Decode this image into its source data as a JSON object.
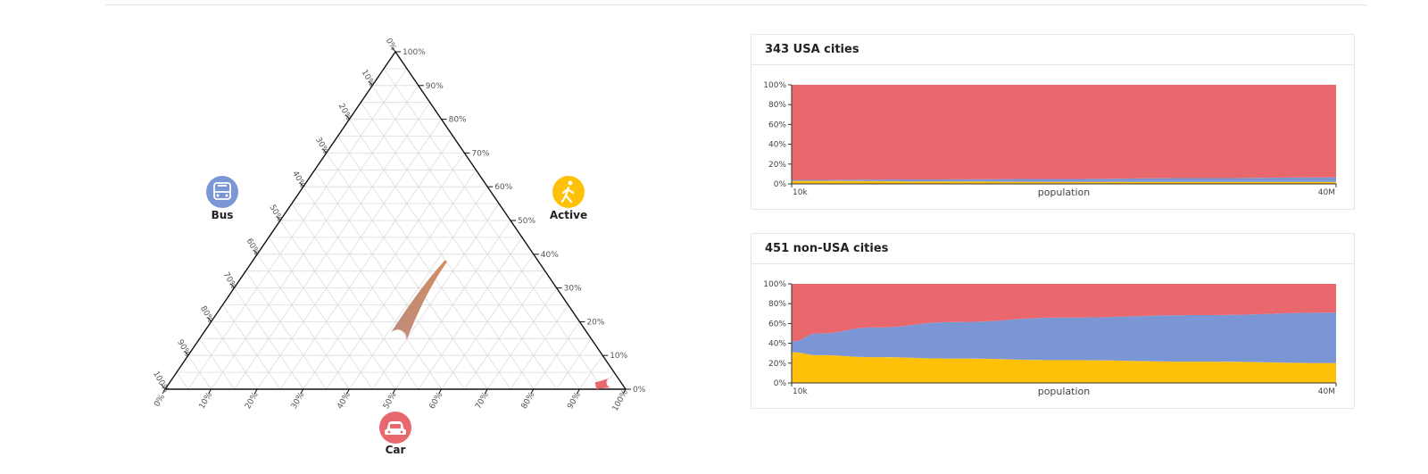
{
  "ternary": {
    "modes": [
      {
        "key": "bus",
        "label": "Bus",
        "color": "#7b96d5",
        "icon": "bus-icon"
      },
      {
        "key": "active",
        "label": "Active",
        "color": "#ffc107",
        "icon": "walking-person-icon"
      },
      {
        "key": "car",
        "label": "Car",
        "color": "#e8686d",
        "icon": "car-icon"
      }
    ],
    "tick_labels": [
      "0%",
      "10%",
      "20%",
      "30%",
      "40%",
      "50%",
      "60%",
      "70%",
      "80%",
      "90%",
      "100%"
    ],
    "trends": [
      {
        "name": "non-USA cities",
        "color_start": "#b28c8c",
        "color_end": "#e38b4a",
        "points": [
          {
            "car": 0.43,
            "bus": 0.42,
            "active": 0.15
          },
          {
            "car": 0.42,
            "bus": 0.2,
            "active": 0.38
          }
        ]
      },
      {
        "name": "USA cities",
        "color_start": "#e8686d",
        "color_end": "#e8686d",
        "points": [
          {
            "car": 0.96,
            "bus": 0.02,
            "active": 0.02
          },
          {
            "car": 0.93,
            "bus": 0.06,
            "active": 0.01
          }
        ]
      }
    ]
  },
  "chart_data": [
    {
      "type": "area",
      "title": "343 USA cities",
      "xlabel": "population",
      "x_ticks": [
        "10k",
        "40M"
      ],
      "y_ticks": [
        "0%",
        "20%",
        "40%",
        "60%",
        "80%",
        "100%"
      ],
      "ylim": [
        0,
        100
      ],
      "x": [
        0,
        0.25,
        0.5,
        0.75,
        1
      ],
      "series": [
        {
          "name": "Active",
          "color": "#ffc107",
          "values": [
            3,
            2.5,
            2,
            2,
            2
          ]
        },
        {
          "name": "Bus",
          "color": "#7b96d5",
          "values": [
            1,
            2,
            3,
            3.8,
            4.5
          ]
        },
        {
          "name": "Car",
          "color": "#e8686d",
          "values": [
            96,
            95.5,
            95,
            94.2,
            93.5
          ]
        }
      ]
    },
    {
      "type": "area",
      "title": "451 non-USA cities",
      "xlabel": "population",
      "x_ticks": [
        "10k",
        "40M"
      ],
      "y_ticks": [
        "0%",
        "20%",
        "40%",
        "60%",
        "80%",
        "100%"
      ],
      "ylim": [
        0,
        100
      ],
      "x": [
        0,
        0.05,
        0.15,
        0.3,
        0.5,
        0.75,
        1
      ],
      "series": [
        {
          "name": "Active",
          "color": "#ffc107",
          "values": [
            31,
            28,
            26,
            24.5,
            23,
            21.5,
            20
          ]
        },
        {
          "name": "Bus",
          "color": "#7b96d5",
          "values": [
            11,
            22,
            30,
            37,
            43,
            47,
            51
          ]
        },
        {
          "name": "Car",
          "color": "#e8686d",
          "values": [
            58,
            50,
            44,
            38.5,
            34,
            31.5,
            29
          ]
        }
      ]
    }
  ]
}
